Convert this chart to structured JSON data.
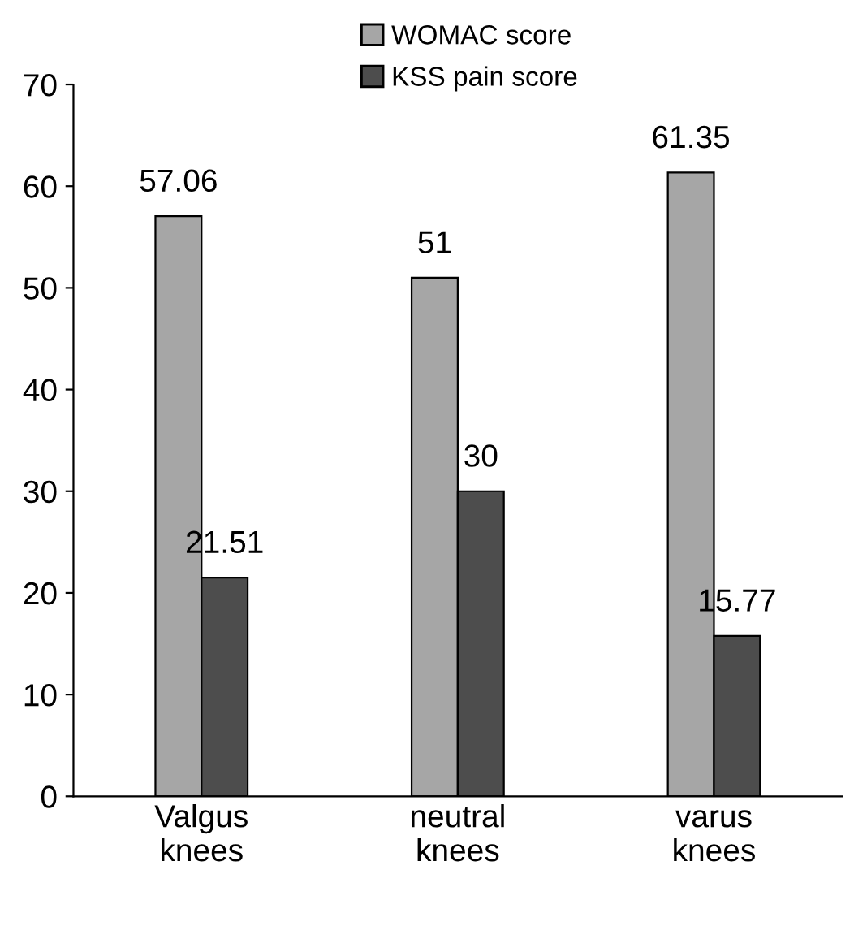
{
  "chart_data": {
    "type": "bar",
    "categories": [
      "Valgus\nknees",
      "neutral\nknees",
      "varus\nknees"
    ],
    "series": [
      {
        "name": "WOMAC score",
        "color": "#a6a6a6",
        "values": [
          57.06,
          51,
          61.35
        ]
      },
      {
        "name": "KSS pain score",
        "color": "#4d4d4d",
        "values": [
          21.51,
          30,
          15.77
        ]
      }
    ],
    "ylim": [
      0,
      70
    ],
    "yticks": [
      0,
      10,
      20,
      30,
      40,
      50,
      60,
      70
    ],
    "data_labels": true,
    "grid": false,
    "legend": "top"
  }
}
